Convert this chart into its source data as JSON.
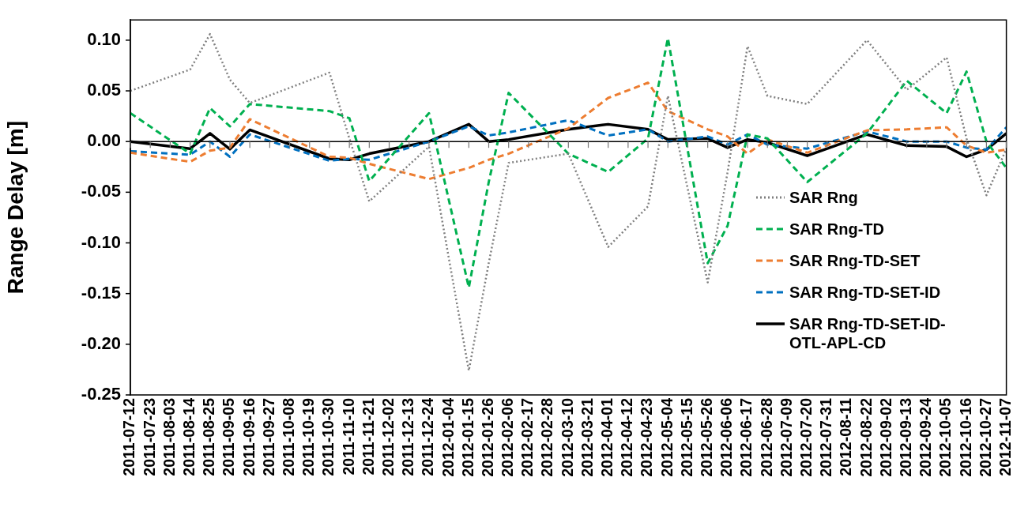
{
  "chart_data": {
    "type": "line",
    "ylabel": "Range Delay [m]",
    "x": [
      "2011-07-12",
      "2011-08-14",
      "2011-08-25",
      "2011-09-05",
      "2011-09-16",
      "2011-10-30",
      "2011-11-10",
      "2011-11-21",
      "2011-12-24",
      "2012-01-15",
      "2012-01-26",
      "2012-02-06",
      "2012-03-10",
      "2012-04-01",
      "2012-04-23",
      "2012-05-04",
      "2012-05-26",
      "2012-06-06",
      "2012-06-17",
      "2012-06-28",
      "2012-07-20",
      "2012-08-22",
      "2012-09-13",
      "2012-10-05",
      "2012-10-16",
      "2012-10-27",
      "2012-11-07"
    ],
    "series": [
      {
        "name": "SAR Rng",
        "color": "#808080",
        "line_style": "dotted",
        "values": [
          0.05,
          0.071,
          0.106,
          0.061,
          0.038,
          0.068,
          0.003,
          -0.059,
          -0.005,
          -0.226,
          -0.12,
          -0.021,
          -0.012,
          -0.104,
          -0.064,
          0.045,
          -0.139,
          -0.03,
          0.094,
          0.045,
          0.037,
          0.1,
          0.051,
          0.083,
          0.003,
          -0.053,
          -0.007
        ]
      },
      {
        "name": "SAR Rng-TD",
        "color": "#00b050",
        "line_style": "dashed",
        "values": [
          0.028,
          -0.012,
          0.033,
          0.015,
          0.037,
          0.03,
          0.023,
          -0.039,
          0.028,
          -0.144,
          -0.04,
          0.048,
          -0.012,
          -0.03,
          0.003,
          0.102,
          -0.12,
          -0.083,
          0.007,
          0.003,
          -0.04,
          0.008,
          0.06,
          0.028,
          0.069,
          0.0,
          -0.026
        ]
      },
      {
        "name": "SAR Rng-TD-SET",
        "color": "#ed7d31",
        "line_style": "dashed",
        "values": [
          -0.011,
          -0.02,
          -0.009,
          -0.006,
          0.022,
          -0.015,
          -0.016,
          -0.022,
          -0.037,
          -0.026,
          -0.018,
          -0.012,
          0.013,
          0.043,
          0.058,
          0.03,
          0.012,
          0.005,
          -0.012,
          0.002,
          -0.011,
          0.011,
          0.012,
          0.014,
          -0.004,
          -0.011,
          -0.008
        ]
      },
      {
        "name": "SAR Rng-TD-SET-ID",
        "color": "#0070c0",
        "line_style": "dashed",
        "values": [
          -0.0095,
          -0.013,
          0.0,
          -0.015,
          0.007,
          -0.019,
          -0.017,
          -0.018,
          0.0,
          0.015,
          0.006,
          0.009,
          0.021,
          0.006,
          0.012,
          0.0,
          0.005,
          -0.003,
          0.007,
          -0.003,
          -0.007,
          0.01,
          0.0,
          0.0,
          -0.006,
          -0.008,
          0.014
        ]
      },
      {
        "name": "SAR Rng-TD-SET-ID-OTL-APL-CD",
        "color": "#000000",
        "line_style": "solid",
        "values": [
          0.0,
          -0.007,
          0.008,
          -0.0075,
          0.0115,
          -0.017,
          -0.018,
          -0.012,
          0.0,
          0.017,
          0.0,
          0.002,
          0.012,
          0.017,
          0.012,
          0.002,
          0.003,
          -0.006,
          0.002,
          -0.001,
          -0.014,
          0.007,
          -0.004,
          -0.005,
          -0.015,
          -0.008,
          0.008
        ]
      }
    ],
    "xlim": [
      "2011-07-12",
      "2012-11-07"
    ],
    "xticks": [
      "2011-07-12",
      "2011-07-23",
      "2011-08-03",
      "2011-08-14",
      "2011-08-25",
      "2011-09-05",
      "2011-09-16",
      "2011-09-27",
      "2011-10-08",
      "2011-10-19",
      "2011-10-30",
      "2011-11-10",
      "2011-11-21",
      "2011-12-02",
      "2011-12-13",
      "2011-12-24",
      "2012-01-04",
      "2012-01-15",
      "2012-01-26",
      "2012-02-06",
      "2012-02-17",
      "2012-02-28",
      "2012-03-10",
      "2012-03-21",
      "2012-04-01",
      "2012-04-12",
      "2012-04-23",
      "2012-05-04",
      "2012-05-15",
      "2012-05-26",
      "2012-06-06",
      "2012-06-17",
      "2012-06-28",
      "2012-07-09",
      "2012-07-20",
      "2012-07-31",
      "2012-08-11",
      "2012-08-22",
      "2012-09-02",
      "2012-09-13",
      "2012-09-24",
      "2012-10-05",
      "2012-10-16",
      "2012-10-27",
      "2012-11-07"
    ],
    "ylim": [
      -0.25,
      0.12
    ],
    "yticks": [
      {
        "value": -0.25,
        "label": "-0.25"
      },
      {
        "value": -0.2,
        "label": "-0.20"
      },
      {
        "value": -0.15,
        "label": "-0.15"
      },
      {
        "value": -0.1,
        "label": "-0.10"
      },
      {
        "value": -0.05,
        "label": "-0.05"
      },
      {
        "value": 0,
        "label": "0.00"
      },
      {
        "value": 0.05,
        "label": "0.05"
      },
      {
        "value": 0.1,
        "label": "0.10"
      }
    ],
    "ref_lines": [
      {
        "axis": "y",
        "value": 0,
        "color": "#000000",
        "line_style": "solid"
      }
    ],
    "grid": false,
    "legend": "right",
    "marker": "none"
  }
}
